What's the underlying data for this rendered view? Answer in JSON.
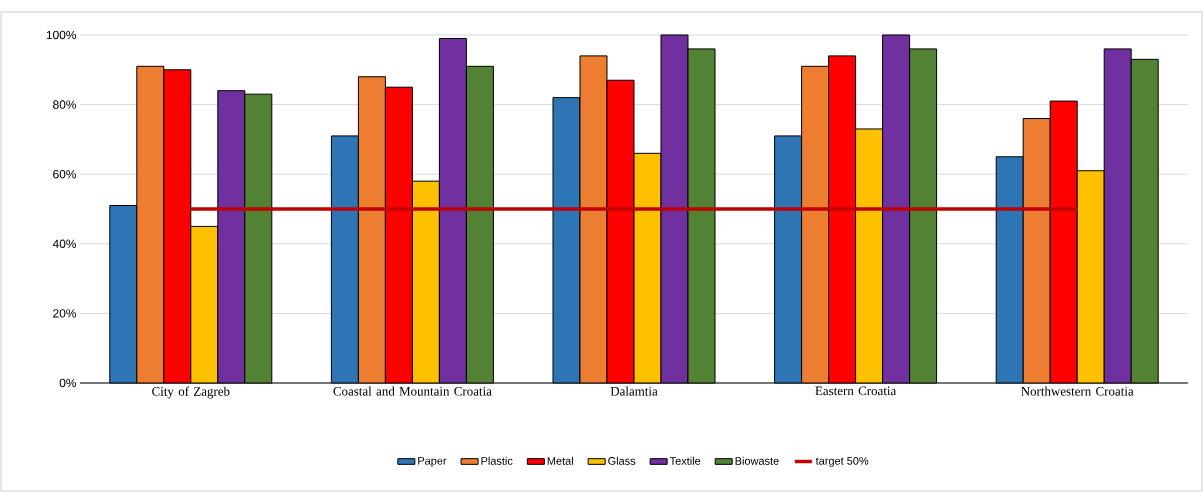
{
  "chart_data": {
    "type": "bar",
    "categories": [
      "City of Zagreb",
      "Coastal and Mountain Croatia",
      "Dalamtia",
      "Eastern Croatia",
      "Northwestern Croatia"
    ],
    "series": [
      {
        "name": "Paper",
        "color": "#2e75b6",
        "values": [
          51,
          71,
          82,
          71,
          65
        ]
      },
      {
        "name": "Plastic",
        "color": "#ed7d31",
        "values": [
          91,
          88,
          94,
          91,
          76
        ]
      },
      {
        "name": "Metal",
        "color": "#ff0000",
        "values": [
          90,
          85,
          87,
          94,
          81
        ]
      },
      {
        "name": "Glass",
        "color": "#ffc000",
        "values": [
          45,
          58,
          66,
          73,
          61
        ]
      },
      {
        "name": "Textile",
        "color": "#7030a0",
        "values": [
          84,
          99,
          100,
          100,
          96
        ]
      },
      {
        "name": "Biowaste",
        "color": "#548235",
        "values": [
          83,
          91,
          96,
          96,
          93
        ]
      },
      {
        "name": "target 50%",
        "color": "#c00000",
        "type": "line",
        "values": [
          50,
          50,
          50,
          50,
          50
        ]
      }
    ],
    "ylim": [
      0,
      100
    ],
    "yticks": [
      {
        "value": 0,
        "label": "0%"
      },
      {
        "value": 20,
        "label": "20%"
      },
      {
        "value": 40,
        "label": "40%"
      },
      {
        "value": 60,
        "label": "60%"
      },
      {
        "value": 80,
        "label": "80%"
      },
      {
        "value": 100,
        "label": "100%"
      }
    ],
    "grid": "y",
    "legend": "bottom"
  }
}
